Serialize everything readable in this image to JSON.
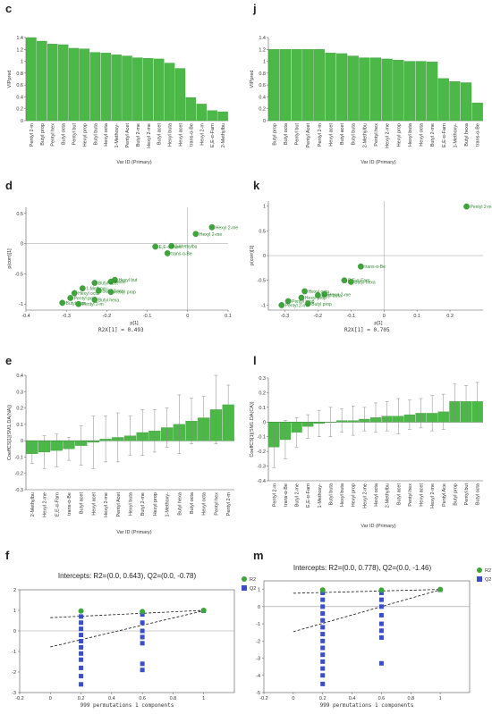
{
  "panels": [
    {
      "id": "c",
      "type": "bar",
      "ylabel": "VIPpred",
      "xlabel": "Var ID (Primary)",
      "ylim": [
        0,
        1.4
      ],
      "yticks": [
        0,
        0.2,
        0.4,
        0.6,
        0.8,
        1,
        1.2,
        1.4
      ],
      "categories": [
        "Pentyl 2-m",
        "Butyl prop",
        "Pentyl hex",
        "Butyl octa",
        "Pentyl but",
        "Hexyl prop",
        "Butyl buta",
        "Hexyl octa",
        "1-Methoxy-",
        "Pentyl Acet",
        "Butyl 2-me",
        "Hexyl 2-me",
        "Butyl acet",
        "Hexyl buta",
        "Hexyl acet",
        "trans-α-Be",
        "Hexyl 2-m",
        "E,E-α-Farn",
        "2-Methylbu"
      ],
      "values": [
        1.4,
        1.34,
        1.29,
        1.28,
        1.22,
        1.21,
        1.15,
        1.14,
        1.11,
        1.09,
        1.06,
        1.05,
        1.04,
        0.97,
        0.88,
        0.39,
        0.28,
        0.17,
        0.15
      ]
    },
    {
      "id": "j",
      "type": "bar",
      "ylabel": "VIPpred",
      "xlabel": "Var ID (Primary)",
      "ylim": [
        0,
        1.4
      ],
      "yticks": [
        0,
        0.2,
        0.4,
        0.6,
        0.8,
        1,
        1.2,
        1.4
      ],
      "categories": [
        "Butyl prop",
        "Butyl octa",
        "Pentyl but",
        "Pentyl Acet",
        "Pentyl 2-m",
        "Hexyl acet",
        "Butyl acet",
        "Butyl buta",
        "2-Methylbu",
        "Pentyl hex",
        "Hexyl 2-me",
        "Hexyl prop",
        "Hexyl buta",
        "Hexyl octa",
        "Butyl 2-me",
        "E,E-α-Farn",
        "1-Methoxy-",
        "Butyl hexa",
        "trans-α-Be"
      ],
      "values": [
        1.2,
        1.2,
        1.2,
        1.2,
        1.2,
        1.14,
        1.13,
        1.09,
        1.06,
        1.06,
        1.04,
        1.02,
        1.0,
        1.0,
        0.99,
        0.71,
        0.66,
        0.64,
        0.3
      ]
    },
    {
      "id": "d",
      "type": "scatter",
      "ylabel": "p(corr)[1]",
      "xlabel": "p[1]",
      "caption": "R2X[1] = 0.493",
      "xlim": [
        -0.4,
        0.1
      ],
      "ylim": [
        -1.1,
        0.6
      ],
      "xticks": [
        -0.4,
        -0.3,
        -0.2,
        -0.1,
        0,
        0.1
      ],
      "yticks": [
        -1,
        -0.5,
        0,
        0.5
      ],
      "points": [
        {
          "label": "Hexyl 2-me",
          "x": 0.06,
          "y": 0.27
        },
        {
          "label": "Hexyl 2-me",
          "x": 0.02,
          "y": 0.16
        },
        {
          "label": "2-Methylbu",
          "x": -0.04,
          "y": -0.04
        },
        {
          "label": "E,E-α-Farn",
          "x": -0.08,
          "y": -0.05
        },
        {
          "label": "trans-α-Be",
          "x": -0.05,
          "y": -0.16
        },
        {
          "label": "Hexyl but",
          "x": -0.18,
          "y": -0.6
        },
        {
          "label": "Pacet",
          "x": -0.19,
          "y": -0.63
        },
        {
          "label": "Butyl acet",
          "x": -0.23,
          "y": -0.65
        },
        {
          "label": "1-Methoxy-",
          "x": -0.26,
          "y": -0.74
        },
        {
          "label": "Butyl 2-me",
          "x": -0.22,
          "y": -0.78
        },
        {
          "label": "Hexyl prop",
          "x": -0.19,
          "y": -0.8
        },
        {
          "label": "Hexyl octa",
          "x": -0.28,
          "y": -0.82
        },
        {
          "label": "Pentyl prop",
          "x": -0.29,
          "y": -0.9
        },
        {
          "label": "Butyl hexa",
          "x": -0.23,
          "y": -0.93
        },
        {
          "label": "Butyl prop",
          "x": -0.31,
          "y": -0.98
        },
        {
          "label": "Pentyl 2-m",
          "x": -0.27,
          "y": -1.0
        }
      ]
    },
    {
      "id": "k",
      "type": "scatter",
      "ylabel": "p(corr)[1]",
      "xlabel": "p[1]",
      "caption": "R2X[1] = 0.705",
      "xlim": [
        -0.35,
        0.3
      ],
      "ylim": [
        -1.1,
        1.1
      ],
      "xticks": [
        -0.3,
        -0.2,
        -0.1,
        0,
        0.1,
        0.2
      ],
      "yticks": [
        -1,
        -0.5,
        0,
        0.5,
        1
      ],
      "points": [
        {
          "label": "Pentyl 2-m",
          "x": 0.25,
          "y": 0.99
        },
        {
          "label": "trans-α-Be",
          "x": -0.07,
          "y": -0.22
        },
        {
          "label": "E,E-α-Farn",
          "x": -0.12,
          "y": -0.5
        },
        {
          "label": "Butyl hexa",
          "x": -0.1,
          "y": -0.53
        },
        {
          "label": "Hexyl octa",
          "x": -0.24,
          "y": -0.72
        },
        {
          "label": "Hexyl 2-me",
          "x": -0.18,
          "y": -0.78
        },
        {
          "label": "Butyl buta",
          "x": -0.2,
          "y": -0.8
        },
        {
          "label": "Hexyl prop",
          "x": -0.25,
          "y": -0.85
        },
        {
          "label": "Pentyl prop",
          "x": -0.29,
          "y": -0.92
        },
        {
          "label": "Butyl prop",
          "x": -0.23,
          "y": -0.97
        },
        {
          "label": "Pentyl 2-me",
          "x": -0.31,
          "y": -1.0
        }
      ]
    },
    {
      "id": "e",
      "type": "barerr",
      "ylabel": "CoeffCS[1](SM1.DA(NA))",
      "xlabel": "Var ID (Primary)",
      "ylim": [
        -0.3,
        0.4
      ],
      "yticks": [
        -0.3,
        -0.2,
        -0.1,
        0,
        0.1,
        0.2,
        0.3,
        0.4
      ],
      "categories": [
        "2-Methylbu",
        "Hexyl 2-me",
        "E,E-α-Farn",
        "trans-α-Be",
        "Butyl acet",
        "Hexyl acet",
        "Hexyl 2-me",
        "Pentyl Acet",
        "Hexyl buta",
        "Butyl 2-me",
        "Hexyl prop",
        "1-Methoxy-",
        "Butyl hexa",
        "Butyl octa",
        "Hexyl octa",
        "Pentyl hex",
        "Pentyl 2-m"
      ],
      "values": [
        -0.08,
        -0.07,
        -0.06,
        -0.05,
        -0.03,
        -0.01,
        0.01,
        0.02,
        0.03,
        0.05,
        0.06,
        0.08,
        0.1,
        0.12,
        0.14,
        0.19,
        0.22
      ],
      "errors": [
        0.06,
        0.1,
        0.1,
        0.07,
        0.12,
        0.16,
        0.14,
        0.15,
        0.12,
        0.14,
        0.13,
        0.12,
        0.18,
        0.14,
        0.13,
        0.21,
        0.12
      ]
    },
    {
      "id": "l",
      "type": "barerr",
      "ylabel": "CoeffCS[1](SM1.DA(CA))",
      "xlabel": "Var ID (Primary)",
      "ylim": [
        -0.4,
        0.3
      ],
      "yticks": [
        -0.4,
        -0.3,
        -0.2,
        -0.1,
        0,
        0.1,
        0.2,
        0.3
      ],
      "categories": [
        "Pentyl 2-m",
        "trans-α-Be",
        "Butyl 2-me",
        "E,E-α-Farn",
        "1-Methoxy-",
        "Butyl buta",
        "Hexyl buta",
        "Hexyl prop",
        "Hexyl 2-me",
        "Hexyl octa",
        "2-Methylbu",
        "Butyl acet",
        "Pentyl hex",
        "Hexyl acet",
        "Hexyl 2-me",
        "Pentyl Ace",
        "Butyl prop",
        "Pentyl but",
        "Butyl octa"
      ],
      "values": [
        -0.17,
        -0.12,
        -0.07,
        -0.03,
        -0.01,
        0.0,
        0.01,
        0.01,
        0.02,
        0.03,
        0.04,
        0.04,
        0.05,
        0.06,
        0.06,
        0.07,
        0.14,
        0.14,
        0.14
      ],
      "errors": [
        0.14,
        0.13,
        0.1,
        0.08,
        0.09,
        0.1,
        0.08,
        0.1,
        0.08,
        0.1,
        0.1,
        0.12,
        0.1,
        0.1,
        0.12,
        0.12,
        0.12,
        0.11,
        0.13
      ]
    },
    {
      "id": "f",
      "type": "permutation",
      "title": "Intercepts: R2=(0.0, 0.643), Q2=(0.0, -0.78)",
      "xlabel": "999 permutations 1 components",
      "xlim": [
        -0.2,
        1.2
      ],
      "ylim": [
        -3,
        2
      ],
      "xticks": [
        -0.2,
        0,
        0.2,
        0.4,
        0.6,
        0.8,
        1
      ],
      "yticks": [
        -3,
        -2,
        -1,
        0,
        1,
        2
      ],
      "legend": [
        "R2",
        "Q2"
      ],
      "r2_intercept": 0.643,
      "q2_intercept": -0.78,
      "r2_points": [
        {
          "x": 0.2,
          "y": 0.97
        },
        {
          "x": 0.6,
          "y": 0.94
        },
        {
          "x": 1,
          "y": 1.0
        }
      ],
      "q2_points": [
        {
          "x": 0.2,
          "y": 0.7
        },
        {
          "x": 0.2,
          "y": 0.4
        },
        {
          "x": 0.2,
          "y": 0.1
        },
        {
          "x": 0.2,
          "y": -0.2
        },
        {
          "x": 0.2,
          "y": -0.5
        },
        {
          "x": 0.2,
          "y": -0.8
        },
        {
          "x": 0.2,
          "y": -1.1
        },
        {
          "x": 0.2,
          "y": -1.4
        },
        {
          "x": 0.2,
          "y": -1.8
        },
        {
          "x": 0.2,
          "y": -2.2
        },
        {
          "x": 0.2,
          "y": -2.6
        },
        {
          "x": 0.6,
          "y": 0.8
        },
        {
          "x": 0.6,
          "y": 0.4
        },
        {
          "x": 0.6,
          "y": 0.0
        },
        {
          "x": 0.6,
          "y": -0.3
        },
        {
          "x": 0.6,
          "y": -0.6
        },
        {
          "x": 0.6,
          "y": -1.6
        },
        {
          "x": 0.6,
          "y": -1.9
        },
        {
          "x": 1,
          "y": 0.98
        }
      ]
    },
    {
      "id": "m",
      "type": "permutation",
      "title": "Intercepts: R2=(0.0, 0.778), Q2=(0.0, -1.46)",
      "xlabel": "999 permutations 1 components",
      "xlim": [
        -0.2,
        1.2
      ],
      "ylim": [
        -5,
        1.5
      ],
      "xticks": [
        -0.2,
        0,
        0.2,
        0.4,
        0.6,
        0.8,
        1
      ],
      "yticks": [
        -5,
        -4,
        -3,
        -2,
        -1,
        0,
        1
      ],
      "legend": [
        "R2",
        "Q2"
      ],
      "r2_intercept": 0.778,
      "q2_intercept": -1.46,
      "r2_points": [
        {
          "x": 0.2,
          "y": 0.97
        },
        {
          "x": 0.6,
          "y": 0.96
        },
        {
          "x": 1,
          "y": 1.0
        }
      ],
      "q2_points": [
        {
          "x": 0.2,
          "y": 0.8
        },
        {
          "x": 0.2,
          "y": 0.4
        },
        {
          "x": 0.2,
          "y": 0.0
        },
        {
          "x": 0.2,
          "y": -0.4
        },
        {
          "x": 0.2,
          "y": -0.8
        },
        {
          "x": 0.2,
          "y": -1.2
        },
        {
          "x": 0.2,
          "y": -1.6
        },
        {
          "x": 0.2,
          "y": -2.0
        },
        {
          "x": 0.2,
          "y": -2.4
        },
        {
          "x": 0.2,
          "y": -2.8
        },
        {
          "x": 0.2,
          "y": -3.2
        },
        {
          "x": 0.2,
          "y": -3.6
        },
        {
          "x": 0.2,
          "y": -4.0
        },
        {
          "x": 0.2,
          "y": -4.5
        },
        {
          "x": 0.6,
          "y": 0.8
        },
        {
          "x": 0.6,
          "y": 0.4
        },
        {
          "x": 0.6,
          "y": 0.0
        },
        {
          "x": 0.6,
          "y": -0.5
        },
        {
          "x": 0.6,
          "y": -1.0
        },
        {
          "x": 0.6,
          "y": -1.4
        },
        {
          "x": 0.6,
          "y": -1.8
        },
        {
          "x": 0.6,
          "y": -3.3
        },
        {
          "x": 1,
          "y": 0.98
        }
      ]
    }
  ],
  "colors": {
    "bar": "#4cb848",
    "bar_edge": "#2f8f2f",
    "point": "#3da53a",
    "q2": "#3b4fc4",
    "axis": "#555555",
    "grid": "#999999"
  }
}
